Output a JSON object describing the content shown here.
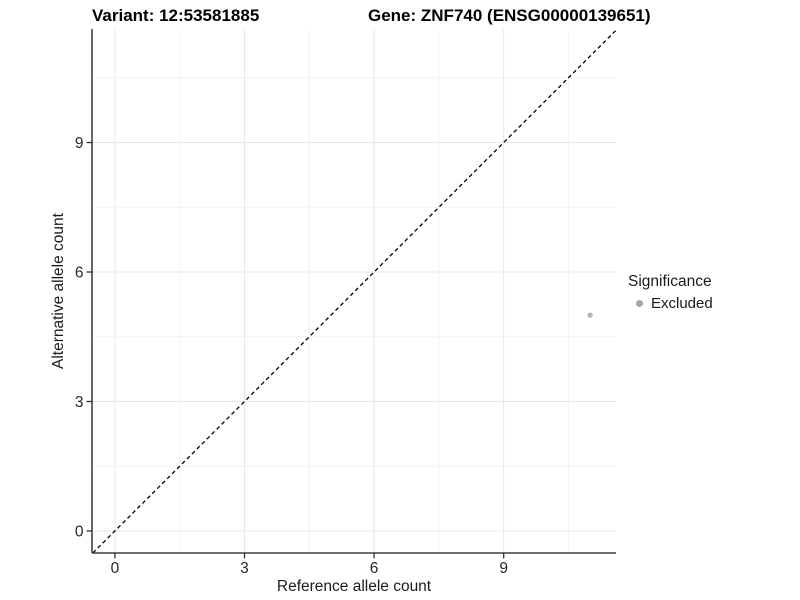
{
  "titles": {
    "variant": "Variant: 12:53581885",
    "gene": "Gene: ZNF740 (ENSG00000139651)"
  },
  "legend": {
    "title": "Significance",
    "entries": [
      {
        "label": "Excluded",
        "color": "#aeaeae"
      }
    ]
  },
  "chart_data": {
    "type": "scatter",
    "title": "Variant: 12:53581885    Gene: ZNF740 (ENSG00000139651)",
    "xlabel": "Reference allele count",
    "ylabel": "Alternative allele count",
    "xlim": [
      -0.53,
      11.6
    ],
    "ylim": [
      -0.51,
      11.63
    ],
    "x_ticks": [
      0,
      3,
      6,
      9
    ],
    "y_ticks": [
      0,
      3,
      6,
      9
    ],
    "minor_ticks": [
      1.5,
      4.5,
      7.5,
      10.5
    ],
    "grid": "major and minor gridlines, very light gray, panel background white",
    "legend_position": "right",
    "legend_title": "Significance",
    "series": [
      {
        "name": "Excluded",
        "points": [
          {
            "x": 11,
            "y": 5
          }
        ]
      }
    ],
    "identity_line": {
      "type": "y=x",
      "style": "dashed",
      "color": "#000000"
    },
    "colors": {
      "excluded_point": "#b8b8b8",
      "legend_key": "#a6a6a6",
      "axis": "#404040",
      "tick": "#333333",
      "tick_label": "#262626",
      "grid_major": "#e8e8e8",
      "grid_minor": "#f4f4f4",
      "reference_line": "#000000"
    }
  }
}
